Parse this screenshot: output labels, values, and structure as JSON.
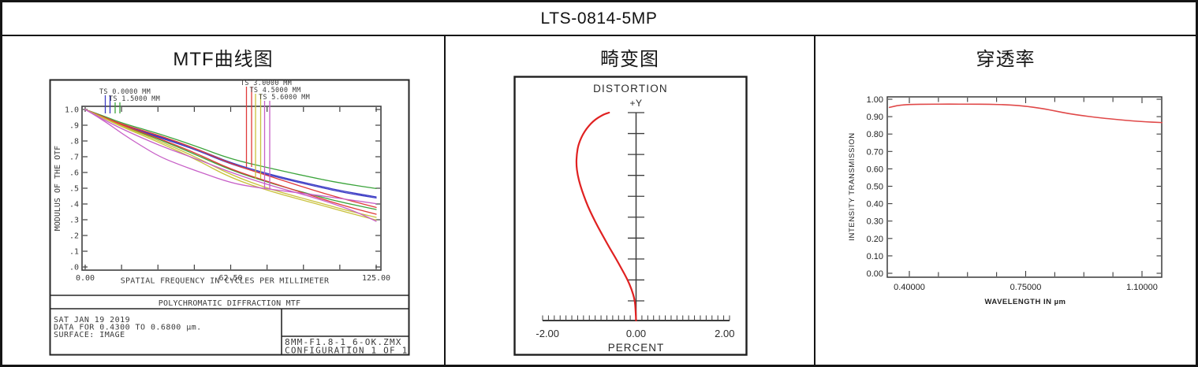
{
  "title": "LTS-0814-5MP",
  "panels": {
    "mtf": {
      "header": "MTF曲线图",
      "info_lines": [
        "SAT JAN 19 2019",
        "DATA FOR 0.4300 TO 0.6800 µm.",
        "SURFACE: IMAGE"
      ],
      "file_name": "8MM-F1.8-1_6-OK.ZMX",
      "configuration": "CONFIGURATION 1 OF 1"
    },
    "distortion": {
      "header": "畸变图"
    },
    "transmission": {
      "header": "穿透率"
    }
  },
  "chart_data": [
    {
      "id": "mtf",
      "type": "line",
      "title": "POLYCHROMATIC DIFFRACTION MTF",
      "xlabel": "SPATIAL FREQUENCY IN CYCLES PER MILLIMETER",
      "ylabel": "MODULUS OF THE OTF",
      "xlim": [
        0,
        125
      ],
      "ylim": [
        0,
        1
      ],
      "xtick_values": [
        0,
        62.5,
        125
      ],
      "xtick_labels": [
        "0.00",
        "62.50",
        "125.00"
      ],
      "xtick_minor_intervals": 8,
      "ytick_labels": [
        "1.0",
        ".9",
        ".8",
        ".7",
        ".6",
        ".5",
        ".4",
        ".3",
        ".2",
        ".1",
        ".0"
      ],
      "grid": false,
      "legend_position": "top",
      "legend": [
        {
          "label": "TS 0.0000 MM",
          "color": "#3b3bc4"
        },
        {
          "label": "TS 1.5000 MM",
          "color": "#3ba43b"
        },
        {
          "label": "TS 3.0000 MM",
          "color": "#e03a3a"
        },
        {
          "label": "TS 4.5000 MM",
          "color": "#c9c13b"
        },
        {
          "label": "TS 5.6000 MM",
          "color": "#c75fc7"
        }
      ],
      "series": [
        {
          "name": "T 0.0000 MM",
          "color": "#3b3bc4",
          "points": [
            [
              0,
              1.0
            ],
            [
              8,
              0.95
            ],
            [
              16,
              0.9
            ],
            [
              32,
              0.828
            ],
            [
              48,
              0.75
            ],
            [
              62.5,
              0.66
            ],
            [
              80,
              0.585
            ],
            [
              100,
              0.515
            ],
            [
              112,
              0.478
            ],
            [
              125,
              0.445
            ]
          ]
        },
        {
          "name": "S 0.0000 MM",
          "color": "#3b3bc4",
          "points": [
            [
              0,
              1.0
            ],
            [
              8,
              0.948
            ],
            [
              16,
              0.897
            ],
            [
              32,
              0.822
            ],
            [
              48,
              0.742
            ],
            [
              62.5,
              0.652
            ],
            [
              80,
              0.578
            ],
            [
              100,
              0.508
            ],
            [
              112,
              0.47
            ],
            [
              125,
              0.438
            ]
          ]
        },
        {
          "name": "T 1.5000 MM",
          "color": "#3ba43b",
          "points": [
            [
              0,
              1.0
            ],
            [
              8,
              0.958
            ],
            [
              16,
              0.912
            ],
            [
              32,
              0.845
            ],
            [
              48,
              0.765
            ],
            [
              62.5,
              0.685
            ],
            [
              80,
              0.625
            ],
            [
              100,
              0.56
            ],
            [
              112,
              0.527
            ],
            [
              125,
              0.498
            ]
          ]
        },
        {
          "name": "S 1.5000 MM",
          "color": "#3ba43b",
          "points": [
            [
              0,
              1.0
            ],
            [
              8,
              0.95
            ],
            [
              16,
              0.895
            ],
            [
              32,
              0.81
            ],
            [
              48,
              0.71
            ],
            [
              62.5,
              0.615
            ],
            [
              80,
              0.53
            ],
            [
              100,
              0.448
            ],
            [
              112,
              0.405
            ],
            [
              125,
              0.365
            ]
          ]
        },
        {
          "name": "T 3.0000 MM",
          "color": "#e03a3a",
          "points": [
            [
              0,
              1.0
            ],
            [
              8,
              0.952
            ],
            [
              16,
              0.905
            ],
            [
              32,
              0.835
            ],
            [
              48,
              0.75
            ],
            [
              62.5,
              0.655
            ],
            [
              80,
              0.572
            ],
            [
              100,
              0.478
            ],
            [
              112,
              0.428
            ],
            [
              125,
              0.378
            ]
          ]
        },
        {
          "name": "S 3.0000 MM",
          "color": "#e03a3a",
          "points": [
            [
              0,
              1.0
            ],
            [
              8,
              0.949
            ],
            [
              16,
              0.9
            ],
            [
              32,
              0.815
            ],
            [
              48,
              0.72
            ],
            [
              62.5,
              0.62
            ],
            [
              80,
              0.535
            ],
            [
              100,
              0.44
            ],
            [
              112,
              0.385
            ],
            [
              125,
              0.335
            ]
          ]
        },
        {
          "name": "T 4.5000 MM",
          "color": "#c9c13b",
          "points": [
            [
              0,
              1.0
            ],
            [
              8,
              0.946
            ],
            [
              16,
              0.893
            ],
            [
              32,
              0.8
            ],
            [
              48,
              0.695
            ],
            [
              62.5,
              0.585
            ],
            [
              80,
              0.49
            ],
            [
              100,
              0.41
            ],
            [
              112,
              0.36
            ],
            [
              125,
              0.315
            ]
          ]
        },
        {
          "name": "S 4.5000 MM",
          "color": "#c9c13b",
          "points": [
            [
              0,
              1.0
            ],
            [
              8,
              0.944
            ],
            [
              16,
              0.888
            ],
            [
              32,
              0.79
            ],
            [
              48,
              0.68
            ],
            [
              62.5,
              0.565
            ],
            [
              80,
              0.478
            ],
            [
              100,
              0.398
            ],
            [
              112,
              0.348
            ],
            [
              125,
              0.298
            ]
          ]
        },
        {
          "name": "T 5.6000 MM",
          "color": "#c75fc7",
          "points": [
            [
              0,
              1.0
            ],
            [
              8,
              0.935
            ],
            [
              16,
              0.875
            ],
            [
              32,
              0.77
            ],
            [
              48,
              0.685
            ],
            [
              62.5,
              0.6
            ],
            [
              80,
              0.515
            ],
            [
              95,
              0.455
            ],
            [
              108,
              0.395
            ],
            [
              118,
              0.34
            ],
            [
              125,
              0.29
            ]
          ]
        },
        {
          "name": "S 5.6000 MM",
          "color": "#c75fc7",
          "points": [
            [
              0,
              1.0
            ],
            [
              8,
              0.93
            ],
            [
              16,
              0.845
            ],
            [
              24,
              0.77
            ],
            [
              32,
              0.7
            ],
            [
              40,
              0.652
            ],
            [
              50,
              0.598
            ],
            [
              62.5,
              0.535
            ],
            [
              72,
              0.508
            ],
            [
              85,
              0.483
            ],
            [
              100,
              0.455
            ],
            [
              112,
              0.43
            ],
            [
              125,
              0.402
            ]
          ]
        }
      ]
    },
    {
      "id": "distortion",
      "type": "line",
      "title": "DISTORTION",
      "field_axis_label": "+Y",
      "xlabel": "PERCENT",
      "xlim": [
        -2,
        2
      ],
      "xtick_values": [
        -2,
        0,
        2
      ],
      "xtick_labels": [
        "-2.00",
        "0.00",
        "2.00"
      ],
      "field_axis_ticks": 10,
      "grid": false,
      "series": [
        {
          "name": "distortion",
          "color": "#e02121",
          "points": [
            [
              0.0,
              0.0
            ],
            [
              -0.01,
              0.05
            ],
            [
              -0.03,
              0.1
            ],
            [
              -0.1,
              0.15
            ],
            [
              -0.2,
              0.2
            ],
            [
              -0.33,
              0.25
            ],
            [
              -0.46,
              0.3
            ],
            [
              -0.6,
              0.35
            ],
            [
              -0.73,
              0.4
            ],
            [
              -0.86,
              0.45
            ],
            [
              -0.98,
              0.5
            ],
            [
              -1.09,
              0.55
            ],
            [
              -1.18,
              0.6
            ],
            [
              -1.26,
              0.65
            ],
            [
              -1.32,
              0.7
            ],
            [
              -1.35,
              0.75
            ],
            [
              -1.34,
              0.8
            ],
            [
              -1.3,
              0.85
            ],
            [
              -1.17,
              0.91
            ],
            [
              -0.97,
              0.96
            ],
            [
              -0.75,
              0.99
            ],
            [
              -0.61,
              1.0
            ]
          ]
        }
      ]
    },
    {
      "id": "transmission",
      "type": "line",
      "xlabel": "WAVELENGTH IN µm",
      "ylabel": "INTENSITY TRANSMISSION",
      "xlim": [
        0.34,
        1.16
      ],
      "ylim": [
        0,
        1
      ],
      "xtick_values": [
        0.4,
        0.75,
        1.1
      ],
      "xtick_labels": [
        "0.40000",
        "0.75000",
        "1.10000"
      ],
      "xtick_minor_step": 0.0875,
      "ytick_labels": [
        "1.00",
        "0.90",
        "0.80",
        "0.70",
        "0.60",
        "0.50",
        "0.40",
        "0.30",
        "0.20",
        "0.10",
        "0.00"
      ],
      "grid": false,
      "series": [
        {
          "name": "transmission",
          "color": "#e04848",
          "points": [
            [
              0.34,
              0.953
            ],
            [
              0.36,
              0.964
            ],
            [
              0.4,
              0.97
            ],
            [
              0.46,
              0.9715
            ],
            [
              0.52,
              0.972
            ],
            [
              0.58,
              0.9715
            ],
            [
              0.64,
              0.971
            ],
            [
              0.7,
              0.968
            ],
            [
              0.75,
              0.96
            ],
            [
              0.8,
              0.947
            ],
            [
              0.84,
              0.932
            ],
            [
              0.88,
              0.917
            ],
            [
              0.92,
              0.906
            ],
            [
              0.96,
              0.896
            ],
            [
              1.0,
              0.888
            ],
            [
              1.05,
              0.879
            ],
            [
              1.1,
              0.871
            ],
            [
              1.16,
              0.866
            ]
          ]
        }
      ]
    }
  ]
}
